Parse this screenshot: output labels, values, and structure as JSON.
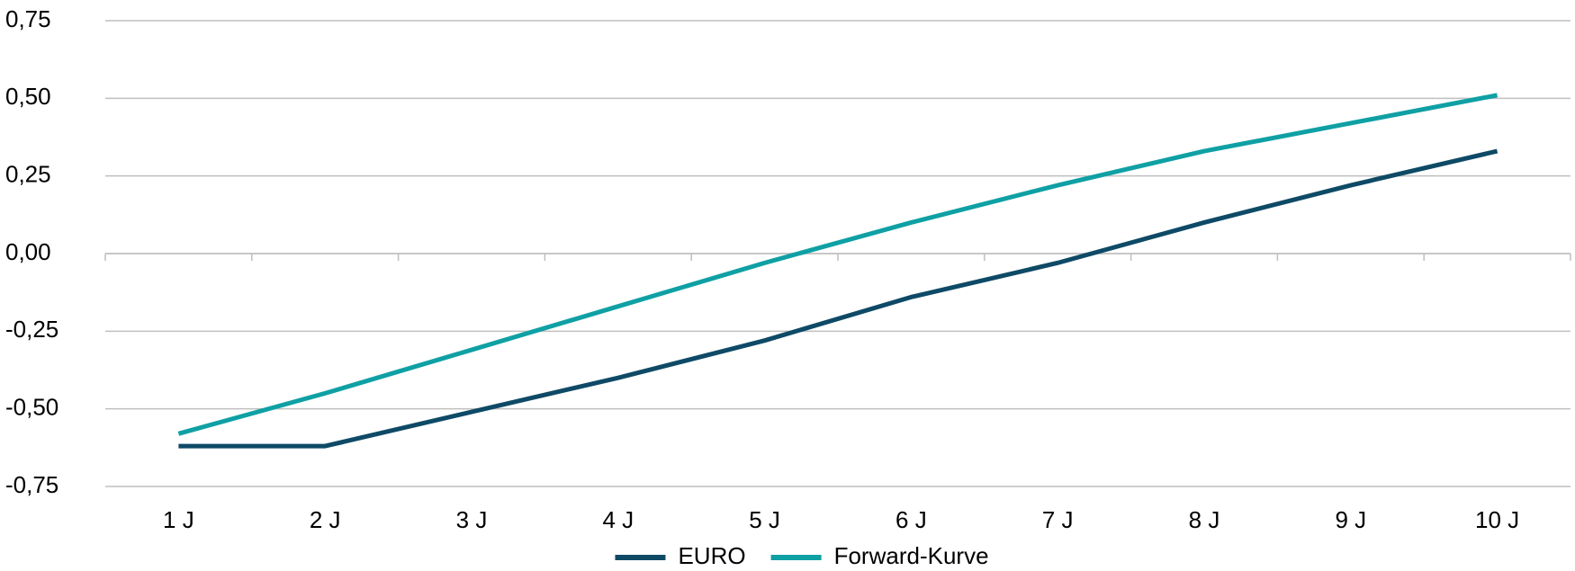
{
  "chart_data": {
    "type": "line",
    "categories": [
      "1 J",
      "2 J",
      "3 J",
      "4 J",
      "5 J",
      "6 J",
      "7 J",
      "8 J",
      "9 J",
      "10 J"
    ],
    "series": [
      {
        "name": "EURO",
        "color": "#0e4a66",
        "values": [
          -0.62,
          -0.62,
          -0.51,
          -0.4,
          -0.28,
          -0.14,
          -0.03,
          0.1,
          0.22,
          0.33
        ]
      },
      {
        "name": "Forward-Kurve",
        "color": "#0fa0a4",
        "values": [
          -0.58,
          -0.45,
          -0.31,
          -0.17,
          -0.03,
          0.1,
          0.22,
          0.33,
          0.42,
          0.51
        ]
      }
    ],
    "ylim": [
      -0.75,
      0.75
    ],
    "yticks": [
      {
        "value": -0.75,
        "label": "-0,75"
      },
      {
        "value": -0.5,
        "label": "-0,50"
      },
      {
        "value": -0.25,
        "label": "-0,25"
      },
      {
        "value": 0,
        "label": "0,00"
      },
      {
        "value": 0.25,
        "label": "0,25"
      },
      {
        "value": 0.5,
        "label": "0,50"
      },
      {
        "value": 0.75,
        "label": "0,75"
      }
    ],
    "grid": true,
    "legend": "bottom"
  }
}
